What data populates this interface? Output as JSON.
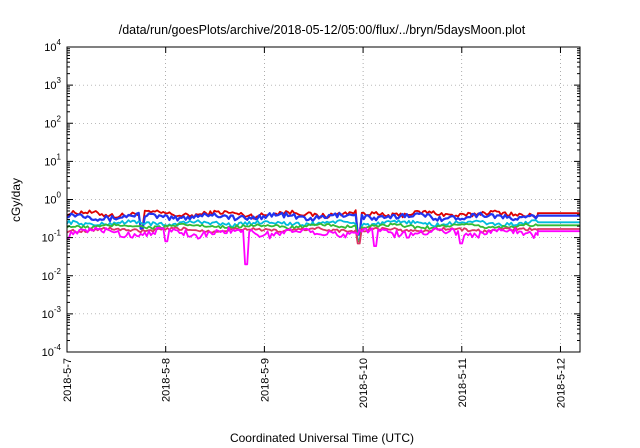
{
  "chart_data": {
    "type": "line",
    "title": "/data/run/goesPlots/archive/2018-05-12/05:00/flux/../bryn/5daysMoon.plot",
    "xlabel": "Coordinated Universal Time (UTC)",
    "ylabel": "cGy/day",
    "yscale": "log",
    "ylim": [
      0.0001,
      10000
    ],
    "xlim": [
      "2018-05-07T00:00",
      "2018-05-12T04:45"
    ],
    "grid": true,
    "x_ticks": [
      "2018-5-7",
      "2018-5-8",
      "2018-5-9",
      "2018-5-10",
      "2018-5-11",
      "2018-5-12"
    ],
    "y_ticks": [
      {
        "base": "10",
        "exp": "-4"
      },
      {
        "base": "10",
        "exp": "-3"
      },
      {
        "base": "10",
        "exp": "-2"
      },
      {
        "base": "10",
        "exp": "-1"
      },
      {
        "base": "10",
        "exp": "0"
      },
      {
        "base": "10",
        "exp": "1"
      },
      {
        "base": "10",
        "exp": "2"
      },
      {
        "base": "10",
        "exp": "3"
      },
      {
        "base": "10",
        "exp": "4"
      }
    ],
    "series": [
      {
        "color": "#dd0000",
        "level": 0.42,
        "amp": 0.18,
        "dips": [
          {
            "x": "2018-05-09T23:00",
            "v": 0.13
          },
          {
            "x": "2018-05-07T18:00",
            "v": 0.2
          }
        ]
      },
      {
        "color": "#2233ee",
        "level": 0.36,
        "amp": 0.2,
        "dips": [
          {
            "x": "2018-05-09T23:00",
            "v": 0.12
          },
          {
            "x": "2018-05-07T18:00",
            "v": 0.17
          }
        ]
      },
      {
        "color": "#00bbdd",
        "level": 0.24,
        "amp": 0.15,
        "dips": [
          {
            "x": "2018-05-09T23:00",
            "v": 0.09
          }
        ]
      },
      {
        "color": "#33bb33",
        "level": 0.2,
        "amp": 0.12,
        "dips": [
          {
            "x": "2018-05-09T23:00",
            "v": 0.08
          }
        ]
      },
      {
        "color": "#dd3366",
        "level": 0.16,
        "amp": 0.12,
        "dips": [
          {
            "x": "2018-05-09T23:00",
            "v": 0.07
          }
        ]
      },
      {
        "color": "#ff00ff",
        "level": 0.14,
        "amp": 0.25,
        "dips": [
          {
            "x": "2018-05-08T19:30",
            "v": 0.02
          },
          {
            "x": "2018-05-10T03:00",
            "v": 0.06
          },
          {
            "x": "2018-05-11T00:00",
            "v": 0.07
          },
          {
            "x": "2018-05-08T00:00",
            "v": 0.08
          }
        ]
      }
    ]
  }
}
